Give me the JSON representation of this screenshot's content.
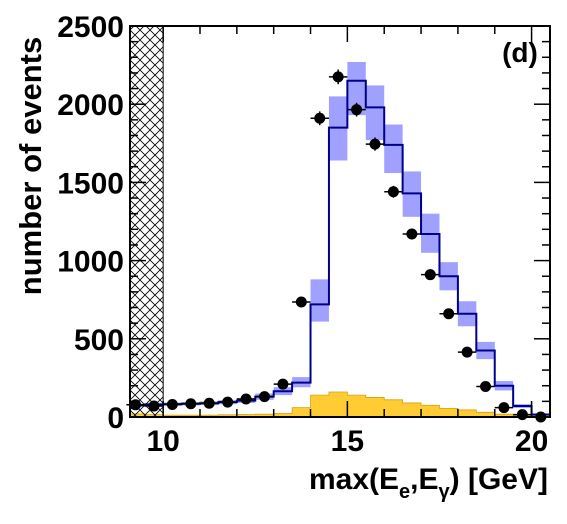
{
  "chart_data": {
    "type": "histogram",
    "panel_label": "(d)",
    "xlabel": "max(E",
    "xlabel_sub1": "e",
    "xlabel_mid": ",E",
    "xlabel_sub2": "γ",
    "xlabel_end": ") [GeV]",
    "ylabel": "number of events",
    "xlim": [
      9.1,
      20.5
    ],
    "ylim": [
      0,
      2500
    ],
    "x_ticks": [
      10,
      15,
      20
    ],
    "y_ticks": [
      0,
      500,
      1000,
      1500,
      2000,
      2500
    ],
    "excluded_region": [
      9.1,
      10.0
    ],
    "bin_edges": [
      9.0,
      9.5,
      10.0,
      10.5,
      11.0,
      11.5,
      12.0,
      12.5,
      13.0,
      13.5,
      14.0,
      14.5,
      15.0,
      15.5,
      16.0,
      16.5,
      17.0,
      17.5,
      18.0,
      18.5,
      19.0,
      19.5,
      20.0,
      20.5
    ],
    "series": [
      {
        "kind": "mc_histogram",
        "line_color": "#00008b",
        "values": [
          75,
          80,
          82,
          85,
          88,
          95,
          105,
          130,
          165,
          220,
          720,
          1850,
          2150,
          1980,
          1740,
          1430,
          1170,
          900,
          660,
          425,
          200,
          70,
          15
        ]
      },
      {
        "kind": "mc_uncertainty_band",
        "color": "#8080ff",
        "lower": [
          65,
          70,
          72,
          74,
          76,
          82,
          90,
          110,
          140,
          190,
          610,
          1640,
          1930,
          1770,
          1560,
          1280,
          1050,
          810,
          580,
          370,
          170,
          58,
          8
        ],
        "upper": [
          85,
          90,
          92,
          96,
          100,
          108,
          120,
          150,
          190,
          255,
          880,
          2050,
          2270,
          2120,
          1870,
          1570,
          1300,
          990,
          740,
          480,
          230,
          82,
          24
        ]
      },
      {
        "kind": "background_histogram",
        "color": "#ffcc33",
        "values": [
          20,
          15,
          12,
          12,
          12,
          14,
          16,
          18,
          22,
          60,
          140,
          160,
          140,
          125,
          110,
          90,
          75,
          55,
          45,
          30,
          18,
          8,
          4
        ]
      },
      {
        "kind": "data_points",
        "color": "#000000",
        "x": [
          9.25,
          9.75,
          10.25,
          10.75,
          11.25,
          11.75,
          12.25,
          12.75,
          13.25,
          13.75,
          14.25,
          14.75,
          15.25,
          15.75,
          16.25,
          16.75,
          17.25,
          17.75,
          18.25,
          18.75,
          19.25,
          19.75,
          20.25
        ],
        "y": [
          78,
          70,
          80,
          85,
          88,
          95,
          115,
          130,
          210,
          735,
          1910,
          2175,
          1965,
          1745,
          1440,
          1170,
          910,
          660,
          415,
          195,
          60,
          15,
          0
        ],
        "errors": [
          9,
          8,
          9,
          9,
          9,
          10,
          11,
          11,
          15,
          27,
          44,
          47,
          44,
          42,
          38,
          34,
          30,
          26,
          20,
          14,
          8,
          4,
          0
        ]
      }
    ]
  }
}
